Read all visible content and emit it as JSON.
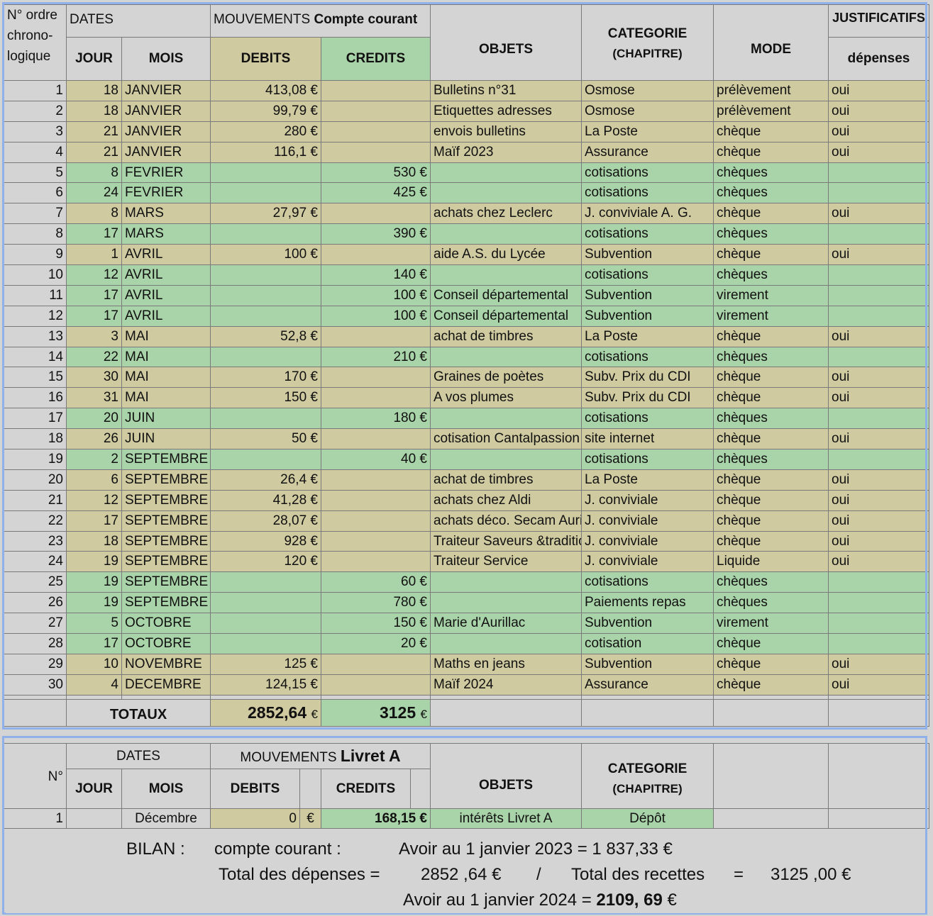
{
  "main": {
    "headers": {
      "ordre": "N° ordre chrono-logique",
      "dates": "DATES",
      "jour": "JOUR",
      "mois": "MOIS",
      "mouvements": "MOUVEMENTS",
      "compte": "Compte courant",
      "debits": "DEBITS",
      "credits": "CREDITS",
      "objets": "OBJETS",
      "categorie": "CATEGORIE",
      "chapitre": "(CHAPITRE)",
      "mode": "MODE",
      "justificatifs": "JUSTIFICATIFS",
      "depenses": "dépenses"
    },
    "rows": [
      {
        "n": "1",
        "jour": "18",
        "mois": "JANVIER",
        "debit": "413,08 €",
        "credit": "",
        "objet": "Bulletins n°31",
        "categorie": "Osmose",
        "mode": "prélèvement",
        "just": "oui",
        "type": "deb"
      },
      {
        "n": "2",
        "jour": "18",
        "mois": "JANVIER",
        "debit": "99,79 €",
        "credit": "",
        "objet": "Etiquettes adresses",
        "categorie": "Osmose",
        "mode": "prélèvement",
        "just": "oui",
        "type": "deb"
      },
      {
        "n": "3",
        "jour": "21",
        "mois": "JANVIER",
        "debit": "280 €",
        "credit": "",
        "objet": "envois bulletins",
        "categorie": "La Poste",
        "mode": "chèque",
        "just": "oui",
        "type": "deb"
      },
      {
        "n": "4",
        "jour": "21",
        "mois": "JANVIER",
        "debit": "116,1 €",
        "credit": "",
        "objet": "Maïf  2023",
        "categorie": "Assurance",
        "mode": "chèque",
        "just": "oui",
        "type": "deb"
      },
      {
        "n": "5",
        "jour": "8",
        "mois": "FEVRIER",
        "debit": "",
        "credit": "530 €",
        "objet": "",
        "categorie": "cotisations",
        "mode": "chèques",
        "just": "",
        "type": "cred"
      },
      {
        "n": "6",
        "jour": "24",
        "mois": "FEVRIER",
        "debit": "",
        "credit": "425 €",
        "objet": "",
        "categorie": "cotisations",
        "mode": "chèques",
        "just": "",
        "type": "cred"
      },
      {
        "n": "7",
        "jour": "8",
        "mois": "MARS",
        "debit": "27,97 €",
        "credit": "",
        "objet": "achats  chez  Leclerc",
        "categorie": "J. conviviale  A. G.",
        "mode": "chèque",
        "just": "oui",
        "type": "deb"
      },
      {
        "n": "8",
        "jour": "17",
        "mois": "MARS",
        "debit": "",
        "credit": "390 €",
        "objet": "",
        "categorie": "cotisations",
        "mode": "chèques",
        "just": "",
        "type": "cred"
      },
      {
        "n": "9",
        "jour": "1",
        "mois": "AVRIL",
        "debit": "100 €",
        "credit": "",
        "objet": "aide A.S. du Lycée",
        "categorie": "Subvention",
        "mode": "chèque",
        "just": "oui",
        "type": "deb"
      },
      {
        "n": "10",
        "jour": "12",
        "mois": "AVRIL",
        "debit": "",
        "credit": "140 €",
        "objet": "",
        "categorie": "cotisations",
        "mode": "chèques",
        "just": "",
        "type": "cred"
      },
      {
        "n": "11",
        "jour": "17",
        "mois": "AVRIL",
        "debit": "",
        "credit": "100 €",
        "objet": "Conseil départemental",
        "categorie": "Subvention",
        "mode": "virement",
        "just": "",
        "type": "cred"
      },
      {
        "n": "12",
        "jour": "17",
        "mois": "AVRIL",
        "debit": "",
        "credit": "100 €",
        "objet": "Conseil départemental",
        "categorie": "Subvention",
        "mode": "virement",
        "just": "",
        "type": "cred"
      },
      {
        "n": "13",
        "jour": "3",
        "mois": "MAI",
        "debit": "52,8 €",
        "credit": "",
        "objet": "achat de timbres",
        "categorie": "La Poste",
        "mode": "chèque",
        "just": "oui",
        "type": "deb"
      },
      {
        "n": "14",
        "jour": "22",
        "mois": "MAI",
        "debit": "",
        "credit": "210 €",
        "objet": "",
        "categorie": "cotisations",
        "mode": "chèques",
        "just": "",
        "type": "cred"
      },
      {
        "n": "15",
        "jour": "30",
        "mois": "MAI",
        "debit": "170 €",
        "credit": "",
        "objet": "Graines de poètes",
        "categorie": "Subv. Prix du CDI",
        "mode": "chèque",
        "just": "oui",
        "type": "deb"
      },
      {
        "n": "16",
        "jour": "31",
        "mois": "MAI",
        "debit": "150 €",
        "credit": "",
        "objet": "A vos plumes",
        "categorie": "Subv. Prix du CDI",
        "mode": "chèque",
        "just": "oui",
        "type": "deb"
      },
      {
        "n": "17",
        "jour": "20",
        "mois": "JUIN",
        "debit": "",
        "credit": "180 €",
        "objet": "",
        "categorie": "cotisations",
        "mode": "chèques",
        "just": "",
        "type": "cred"
      },
      {
        "n": "18",
        "jour": "26",
        "mois": "JUIN",
        "debit": "50 €",
        "credit": "",
        "objet": "cotisation Cantalpassion",
        "categorie": "site internet",
        "mode": "chèque",
        "just": "oui",
        "type": "deb"
      },
      {
        "n": "19",
        "jour": "2",
        "mois": "SEPTEMBRE",
        "debit": "",
        "credit": "40 €",
        "objet": "",
        "categorie": "cotisations",
        "mode": "chèques",
        "just": "",
        "type": "cred"
      },
      {
        "n": "20",
        "jour": "6",
        "mois": "SEPTEMBRE",
        "debit": "26,4 €",
        "credit": "",
        "objet": "achat de timbres",
        "categorie": "La Poste",
        "mode": "chèque",
        "just": "oui",
        "type": "deb"
      },
      {
        "n": "21",
        "jour": "12",
        "mois": "SEPTEMBRE",
        "debit": "41,28 €",
        "credit": "",
        "objet": "achats  chez   Aldi",
        "categorie": "J. conviviale",
        "mode": "chèque",
        "just": "oui",
        "type": "deb"
      },
      {
        "n": "22",
        "jour": "17",
        "mois": "SEPTEMBRE",
        "debit": "28,07 €",
        "credit": "",
        "objet": "achats déco. Secam Aurillac",
        "categorie": "J. conviviale",
        "mode": "chèque",
        "just": "oui",
        "type": "deb"
      },
      {
        "n": "23",
        "jour": "18",
        "mois": "SEPTEMBRE",
        "debit": "928 €",
        "credit": "",
        "objet": "Traiteur Saveurs &traditions",
        "categorie": "J. conviviale",
        "mode": "chèque",
        "just": "oui",
        "type": "deb"
      },
      {
        "n": "24",
        "jour": "19",
        "mois": "SEPTEMBRE",
        "debit": "120 €",
        "credit": "",
        "objet": "Traiteur Service",
        "categorie": "J. conviviale",
        "mode": "Liquide",
        "just": "oui",
        "type": "deb"
      },
      {
        "n": "25",
        "jour": "19",
        "mois": "SEPTEMBRE",
        "debit": "",
        "credit": "60 €",
        "objet": "",
        "categorie": "cotisations",
        "mode": "chèques",
        "just": "",
        "type": "cred"
      },
      {
        "n": "26",
        "jour": "19",
        "mois": "SEPTEMBRE",
        "debit": "",
        "credit": "780 €",
        "objet": "",
        "categorie": "Paiements  repas",
        "mode": "chèques",
        "just": "",
        "type": "cred"
      },
      {
        "n": "27",
        "jour": "5",
        "mois": "OCTOBRE",
        "debit": "",
        "credit": "150 €",
        "objet": "Marie d'Aurillac",
        "categorie": "Subvention",
        "mode": "virement",
        "just": "",
        "type": "cred"
      },
      {
        "n": "28",
        "jour": "17",
        "mois": "OCTOBRE",
        "debit": "",
        "credit": "20 €",
        "objet": "",
        "categorie": "cotisation",
        "mode": "chèque",
        "just": "",
        "type": "cred"
      },
      {
        "n": "29",
        "jour": "10",
        "mois": "NOVEMBRE",
        "debit": "125 €",
        "credit": "",
        "objet": "Maths en jeans",
        "categorie": "Subvention",
        "mode": "chèque",
        "just": "oui",
        "type": "deb"
      },
      {
        "n": "30",
        "jour": "4",
        "mois": "DECEMBRE",
        "debit": "124,15 €",
        "credit": "",
        "objet": "Maïf  2024",
        "categorie": "Assurance",
        "mode": "chèque",
        "just": "oui",
        "type": "deb"
      }
    ],
    "totals": {
      "label": "TOTAUX",
      "debit": "2852,64",
      "credit": "3125",
      "euro": "€"
    }
  },
  "livret": {
    "headers": {
      "n": "N°",
      "dates": "DATES",
      "jour": "JOUR",
      "mois": "MOIS",
      "mouvements": "MOUVEMENTS",
      "compte": "Livret A",
      "debits": "DEBITS",
      "credits": "CREDITS",
      "objets": "OBJETS",
      "categorie": "CATEGORIE",
      "chapitre": "(CHAPITRE)"
    },
    "row": {
      "n": "1",
      "mois": "Décembre",
      "debit": "0",
      "debit_euro": "€",
      "credit": "168,15 €",
      "objet": "intérêts Livret A",
      "categorie": "Dépôt"
    }
  },
  "bilan": {
    "label": "BILAN :",
    "compte": "compte courant :",
    "avoir_debut": "Avoir au 1 janvier 2023 = 1 837,33 €",
    "total_dep_label": "Total des dépenses =",
    "total_dep": "2852 ,64 €",
    "slash": "/",
    "total_rec_label": "Total des recettes",
    "eq": "=",
    "total_rec": "3125 ,00 €",
    "avoir_fin_label": "Avoir au 1 janvier 2024 =",
    "avoir_fin_value": "2109, 69",
    "avoir_fin_euro": "€"
  }
}
